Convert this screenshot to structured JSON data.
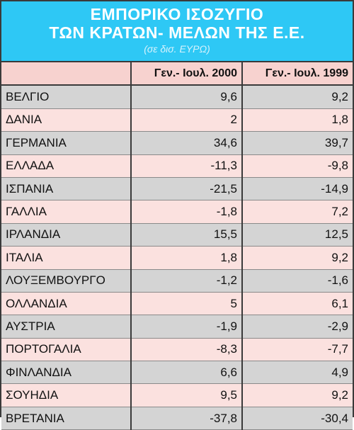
{
  "title_line1": "ΕΜΠΟΡΙΚΟ ΙΣΟΖΥΓΙΟ",
  "title_line2": "ΤΩΝ ΚΡΑΤΩΝ- ΜΕΛΩΝ ΤΗΣ Ε.Ε.",
  "unit": "(σε δισ. ΕΥΡΩ)",
  "colors": {
    "header_bg": "#2ec8f5",
    "header_text": "#ffffff",
    "row_gray": "#d4d4d4",
    "row_pink": "#fbe1df",
    "header_row": "#f7d2cf"
  },
  "columns": [
    "",
    "Γεν.- Ιουλ. 2000",
    "Γεν.- Ιουλ. 1999"
  ],
  "rows": [
    {
      "country": "ΒΕΛΓΙΟ",
      "v2000": "9,6",
      "v1999": "9,2"
    },
    {
      "country": "ΔΑΝΙΑ",
      "v2000": "2",
      "v1999": "1,8"
    },
    {
      "country": "ΓΕΡΜΑΝΙΑ",
      "v2000": "34,6",
      "v1999": "39,7"
    },
    {
      "country": "ΕΛΛΑΔΑ",
      "v2000": "-11,3",
      "v1999": "-9,8"
    },
    {
      "country": "ΙΣΠΑΝΙΑ",
      "v2000": "-21,5",
      "v1999": "-14,9"
    },
    {
      "country": "ΓΑΛΛΙΑ",
      "v2000": "-1,8",
      "v1999": "7,2"
    },
    {
      "country": "ΙΡΛΑΝΔΙΑ",
      "v2000": "15,5",
      "v1999": "12,5"
    },
    {
      "country": "ΙΤΑΛΙΑ",
      "v2000": "1,8",
      "v1999": "9,2"
    },
    {
      "country": "ΛΟΥΞΕΜΒΟΥΡΓΟ",
      "v2000": "-1,2",
      "v1999": "-1,6"
    },
    {
      "country": "ΟΛΛΑΝΔΙΑ",
      "v2000": "5",
      "v1999": "6,1"
    },
    {
      "country": "ΑΥΣΤΡΙΑ",
      "v2000": "-1,9",
      "v1999": "-2,9"
    },
    {
      "country": "ΠΟΡΤΟΓΑΛΙΑ",
      "v2000": "-8,3",
      "v1999": "-7,7"
    },
    {
      "country": "ΦΙΝΛΑΝΔΙΑ",
      "v2000": "6,6",
      "v1999": "4,9"
    },
    {
      "country": "ΣΟΥΗΔΙΑ",
      "v2000": "9,5",
      "v1999": "9,2"
    },
    {
      "country": "ΒΡΕΤΑΝΙΑ",
      "v2000": "-37,8",
      "v1999": "-30,4"
    }
  ]
}
